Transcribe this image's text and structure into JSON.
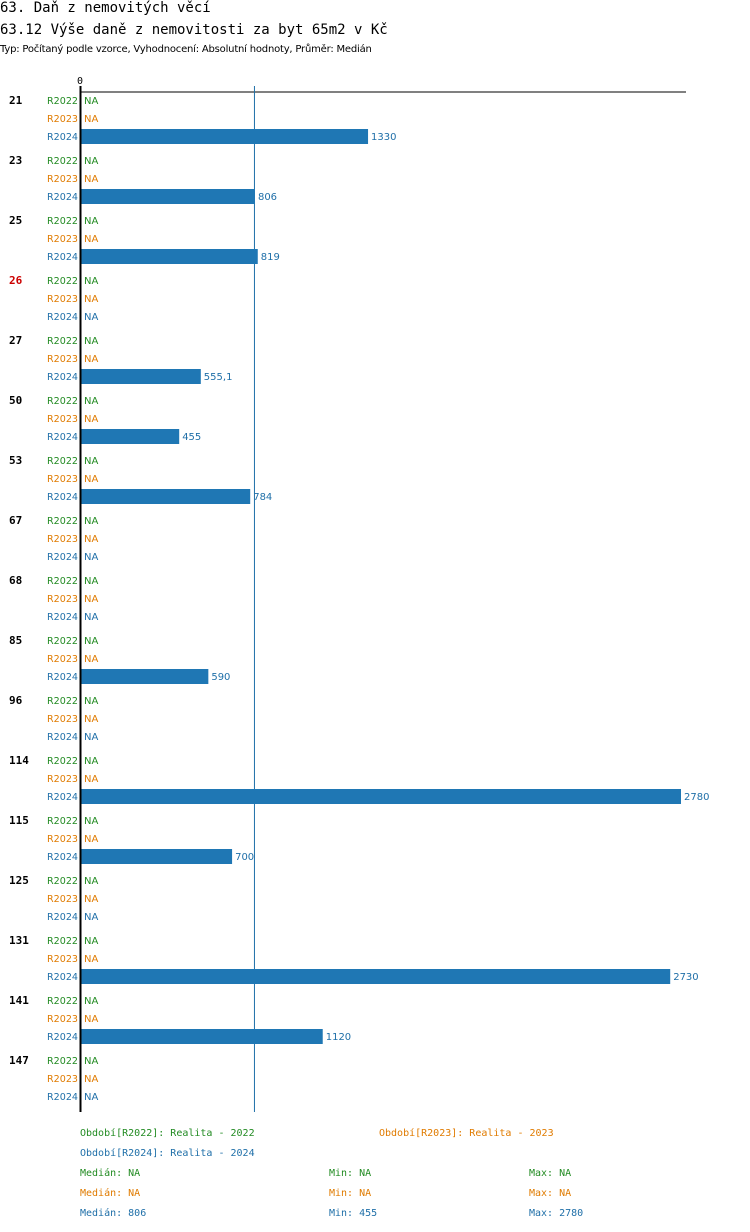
{
  "header": {
    "title": "63. Daň z nemovitých věcí",
    "subtitle": "63.12 Výše daně z nemovitosti za byt 65m2 v Kč",
    "meta": "Typ: Počítaný podle vzorce, Vyhodnocení: Absolutní hodnoty, Průměr: Medián"
  },
  "colors": {
    "R2022": "#228b22",
    "R2023": "#e07b00",
    "R2024": "#1f6fa8",
    "highlight": "#cc0000",
    "bar": "#1f77b4"
  },
  "chart_data": {
    "type": "bar",
    "orientation": "horizontal",
    "title": "63.12 Výše daně z nemovitosti za byt 65m2 v Kč",
    "axis_zero_label": "0",
    "xlim": [
      0,
      2780
    ],
    "reference_line": {
      "label": "Medián",
      "value": 806
    },
    "series": [
      {
        "name": "R2022",
        "label": "R2022"
      },
      {
        "name": "R2023",
        "label": "R2023"
      },
      {
        "name": "R2024",
        "label": "R2024"
      }
    ],
    "groups": [
      {
        "id": "21",
        "highlight": false,
        "values": [
          null,
          null,
          1330
        ],
        "labels": [
          "NA",
          "NA",
          "1330"
        ]
      },
      {
        "id": "23",
        "highlight": false,
        "values": [
          null,
          null,
          806
        ],
        "labels": [
          "NA",
          "NA",
          "806"
        ]
      },
      {
        "id": "25",
        "highlight": false,
        "values": [
          null,
          null,
          819
        ],
        "labels": [
          "NA",
          "NA",
          "819"
        ]
      },
      {
        "id": "26",
        "highlight": true,
        "values": [
          null,
          null,
          null
        ],
        "labels": [
          "NA",
          "NA",
          "NA"
        ]
      },
      {
        "id": "27",
        "highlight": false,
        "values": [
          null,
          null,
          555.1
        ],
        "labels": [
          "NA",
          "NA",
          "555,1"
        ]
      },
      {
        "id": "50",
        "highlight": false,
        "values": [
          null,
          null,
          455
        ],
        "labels": [
          "NA",
          "NA",
          "455"
        ]
      },
      {
        "id": "53",
        "highlight": false,
        "values": [
          null,
          null,
          784
        ],
        "labels": [
          "NA",
          "NA",
          "784"
        ]
      },
      {
        "id": "67",
        "highlight": false,
        "values": [
          null,
          null,
          null
        ],
        "labels": [
          "NA",
          "NA",
          "NA"
        ]
      },
      {
        "id": "68",
        "highlight": false,
        "values": [
          null,
          null,
          null
        ],
        "labels": [
          "NA",
          "NA",
          "NA"
        ]
      },
      {
        "id": "85",
        "highlight": false,
        "values": [
          null,
          null,
          590
        ],
        "labels": [
          "NA",
          "NA",
          "590"
        ]
      },
      {
        "id": "96",
        "highlight": false,
        "values": [
          null,
          null,
          null
        ],
        "labels": [
          "NA",
          "NA",
          "NA"
        ]
      },
      {
        "id": "114",
        "highlight": false,
        "values": [
          null,
          null,
          2780
        ],
        "labels": [
          "NA",
          "NA",
          "2780"
        ]
      },
      {
        "id": "115",
        "highlight": false,
        "values": [
          null,
          null,
          700
        ],
        "labels": [
          "NA",
          "NA",
          "700"
        ]
      },
      {
        "id": "125",
        "highlight": false,
        "values": [
          null,
          null,
          null
        ],
        "labels": [
          "NA",
          "NA",
          "NA"
        ]
      },
      {
        "id": "131",
        "highlight": false,
        "values": [
          null,
          null,
          2730
        ],
        "labels": [
          "NA",
          "NA",
          "2730"
        ]
      },
      {
        "id": "141",
        "highlight": false,
        "values": [
          null,
          null,
          1120
        ],
        "labels": [
          "NA",
          "NA",
          "1120"
        ]
      },
      {
        "id": "147",
        "highlight": false,
        "values": [
          null,
          null,
          null
        ],
        "labels": [
          "NA",
          "NA",
          "NA"
        ]
      }
    ]
  },
  "legend": {
    "periods": [
      "Období[R2022]: Realita - 2022",
      "Období[R2023]: Realita - 2023",
      "Období[R2024]: Realita - 2024"
    ],
    "stats": [
      {
        "median": "Medián: NA",
        "min": "Min: NA",
        "max": "Max: NA"
      },
      {
        "median": "Medián: NA",
        "min": "Min: NA",
        "max": "Max: NA"
      },
      {
        "median": "Medián: 806",
        "min": "Min: 455",
        "max": "Max: 2780"
      }
    ]
  }
}
